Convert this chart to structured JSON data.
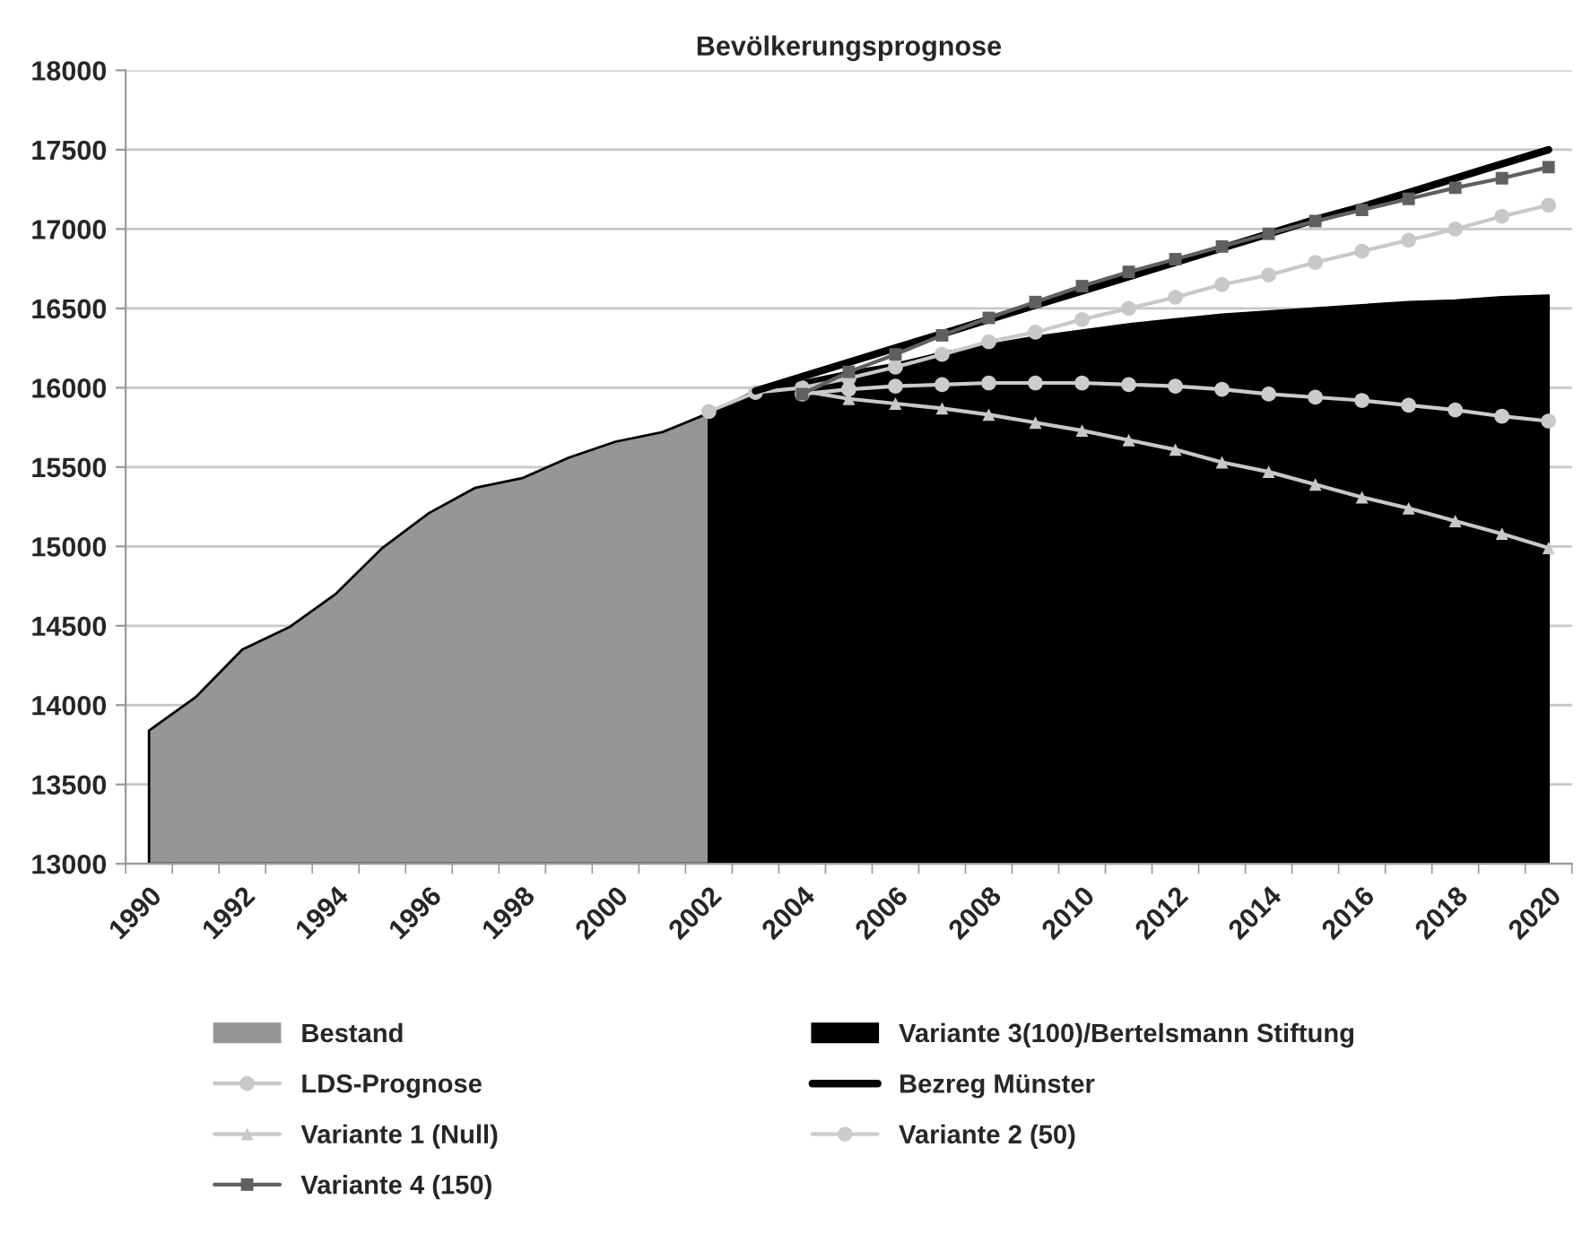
{
  "chart_data": {
    "type": "line",
    "title": "Bevölkerungsprognose",
    "categories": [
      "1990",
      null,
      "1992",
      null,
      "1994",
      null,
      "1996",
      null,
      "1998",
      null,
      "2000",
      null,
      "2002",
      null,
      "2004",
      null,
      "2006",
      null,
      "2008",
      null,
      "2010",
      null,
      "2012",
      null,
      "2014",
      null,
      "2016",
      null,
      "2018",
      null,
      "2020"
    ],
    "ylim": [
      13000,
      18000
    ],
    "yticks": [
      13000,
      13500,
      14000,
      14500,
      15000,
      15500,
      16000,
      16500,
      17000,
      17500,
      18000
    ],
    "grid": "y",
    "legend": "bottom",
    "series": [
      {
        "name": "Bestand",
        "type": "area",
        "color": "#969696",
        "values": [
          13840,
          14050,
          14350,
          14490,
          14700,
          14990,
          15210,
          15370,
          15430,
          15560,
          15660,
          15720,
          15840,
          null,
          null,
          null,
          null,
          null,
          null,
          null,
          null,
          null,
          null,
          null,
          null,
          null,
          null,
          null,
          null,
          null,
          null
        ]
      },
      {
        "name": "Variante 3(100)/Bertelsmann Stiftung",
        "type": "area",
        "color": "#000000",
        "values": [
          null,
          null,
          null,
          null,
          null,
          null,
          null,
          null,
          null,
          null,
          null,
          null,
          15840,
          15980,
          16040,
          16100,
          16150,
          16220,
          16270,
          16320,
          16360,
          16400,
          16430,
          16460,
          16480,
          16500,
          16520,
          16540,
          16550,
          16570,
          16580
        ]
      },
      {
        "name": "LDS-Prognose",
        "marker": "circle",
        "color": "#c8c8c8",
        "values": [
          null,
          null,
          null,
          null,
          null,
          null,
          null,
          null,
          null,
          null,
          null,
          null,
          15850,
          15970,
          16000,
          16060,
          16130,
          16210,
          16290,
          16350,
          16430,
          16500,
          16570,
          16650,
          16710,
          16790,
          16860,
          16930,
          17000,
          17080,
          17150
        ]
      },
      {
        "name": "Bezreg Münster",
        "marker": "none",
        "color": "#000000",
        "values": [
          null,
          null,
          null,
          null,
          null,
          null,
          null,
          null,
          null,
          null,
          null,
          null,
          null,
          15980,
          16070,
          16160,
          16250,
          16340,
          16430,
          16520,
          16610,
          16700,
          16790,
          16880,
          16970,
          17060,
          17140,
          17230,
          17320,
          17410,
          17500
        ]
      },
      {
        "name": "Variante 1 (Null)",
        "marker": "triangle",
        "color": "#c8c8c8",
        "values": [
          null,
          null,
          null,
          null,
          null,
          null,
          null,
          null,
          null,
          null,
          null,
          null,
          null,
          null,
          15980,
          15930,
          15900,
          15870,
          15830,
          15780,
          15730,
          15670,
          15610,
          15530,
          15470,
          15390,
          15310,
          15240,
          15160,
          15080,
          14990
        ]
      },
      {
        "name": "Variante 2 (50)",
        "marker": "circle",
        "color": "#cccccc",
        "values": [
          null,
          null,
          null,
          null,
          null,
          null,
          null,
          null,
          null,
          null,
          null,
          null,
          null,
          null,
          15960,
          15990,
          16010,
          16020,
          16030,
          16030,
          16030,
          16020,
          16010,
          15990,
          15960,
          15940,
          15920,
          15890,
          15860,
          15820,
          15790
        ]
      },
      {
        "name": "Variante 4 (150)",
        "marker": "square",
        "color": "#606060",
        "values": [
          null,
          null,
          null,
          null,
          null,
          null,
          null,
          null,
          null,
          null,
          null,
          null,
          null,
          null,
          15960,
          16100,
          16210,
          16330,
          16440,
          16540,
          16640,
          16730,
          16810,
          16890,
          16970,
          17050,
          17120,
          17190,
          17260,
          17320,
          17390
        ]
      }
    ]
  }
}
